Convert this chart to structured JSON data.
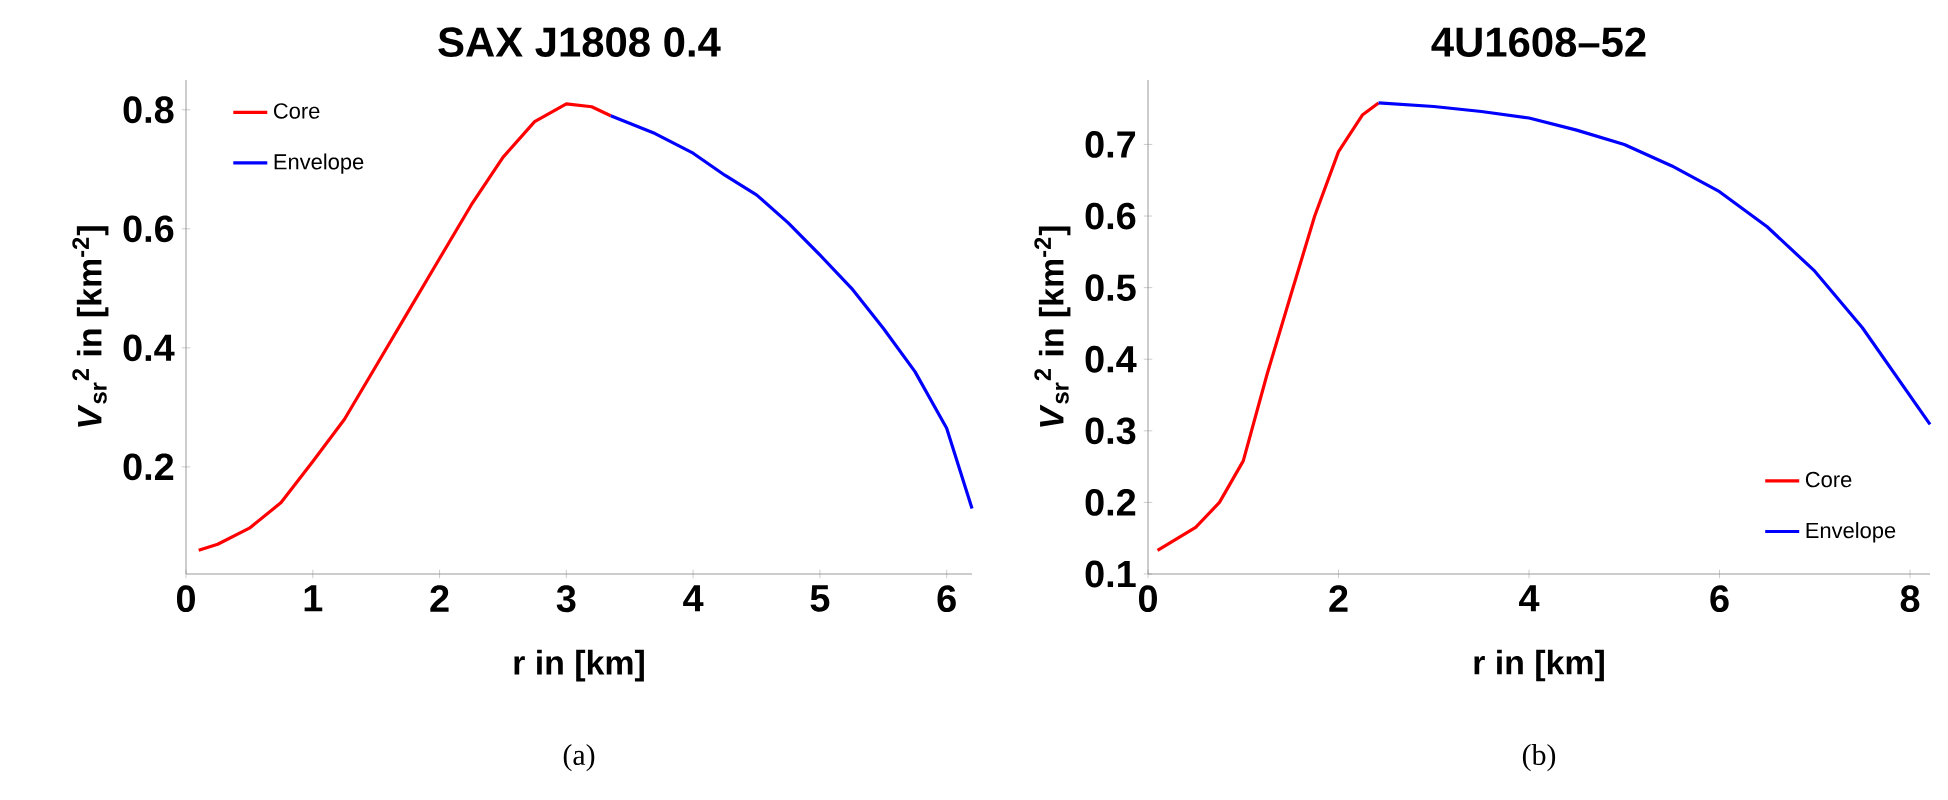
{
  "chart_data": [
    {
      "type": "line",
      "title": "SAX J1808 0.4",
      "xlabel": "r in [km]",
      "ylabel": "*V*$_{sr}$$^{2}$ in [km$^{-2}$]",
      "xlim": [
        0,
        6.2
      ],
      "ylim": [
        0.02,
        0.85
      ],
      "xticks": [
        0,
        1,
        2,
        3,
        4,
        5,
        6
      ],
      "yticks": [
        0.2,
        0.4,
        0.6,
        0.8
      ],
      "legend": "top left",
      "marker": "none",
      "line_style": "solid",
      "annotations": [
        "(a)"
      ],
      "series": [
        {
          "name": "Core",
          "color": "#ff0000",
          "x": [
            0.1,
            0.25,
            0.5,
            0.75,
            1.0,
            1.25,
            1.5,
            1.75,
            2.0,
            2.25,
            2.5,
            2.75,
            3.0,
            3.2,
            3.35
          ],
          "values": [
            0.06,
            0.07,
            0.097,
            0.14,
            0.209,
            0.28,
            0.37,
            0.46,
            0.55,
            0.64,
            0.72,
            0.78,
            0.81,
            0.805,
            0.79
          ]
        },
        {
          "name": "Envelope",
          "color": "#0000ff",
          "x": [
            3.35,
            3.7,
            4.0,
            4.25,
            4.5,
            4.75,
            5.0,
            5.25,
            5.5,
            5.75,
            6.0,
            6.2
          ],
          "values": [
            0.79,
            0.76,
            0.727,
            0.69,
            0.657,
            0.61,
            0.556,
            0.5,
            0.433,
            0.36,
            0.265,
            0.13
          ]
        }
      ]
    },
    {
      "type": "line",
      "title": "4U1608–52",
      "xlabel": "r in [km]",
      "ylabel": "*V*$_{sr}$$^{2}$ in [km$^{-2}$]",
      "xlim": [
        0,
        8.21
      ],
      "ylim": [
        0.1,
        0.79
      ],
      "xticks": [
        0,
        2,
        4,
        6,
        8
      ],
      "yticks": [
        0.1,
        0.2,
        0.3,
        0.4,
        0.5,
        0.6,
        0.7
      ],
      "legend": "bottom right",
      "marker": "none",
      "line_style": "solid",
      "annotations": [
        "(b)"
      ],
      "series": [
        {
          "name": "Core",
          "color": "#ff0000",
          "x": [
            0.1,
            0.5,
            0.75,
            1.0,
            1.25,
            1.5,
            1.75,
            2.0,
            2.25,
            2.42
          ],
          "values": [
            0.133,
            0.165,
            0.2,
            0.258,
            0.379,
            0.49,
            0.6,
            0.69,
            0.741,
            0.758
          ]
        },
        {
          "name": "Envelope",
          "color": "#0000ff",
          "x": [
            2.42,
            3.0,
            3.5,
            4.0,
            4.5,
            5.0,
            5.5,
            6.0,
            6.5,
            7.0,
            7.5,
            8.21
          ],
          "values": [
            0.758,
            0.753,
            0.746,
            0.737,
            0.72,
            0.7,
            0.67,
            0.634,
            0.585,
            0.523,
            0.444,
            0.309
          ]
        }
      ]
    }
  ]
}
